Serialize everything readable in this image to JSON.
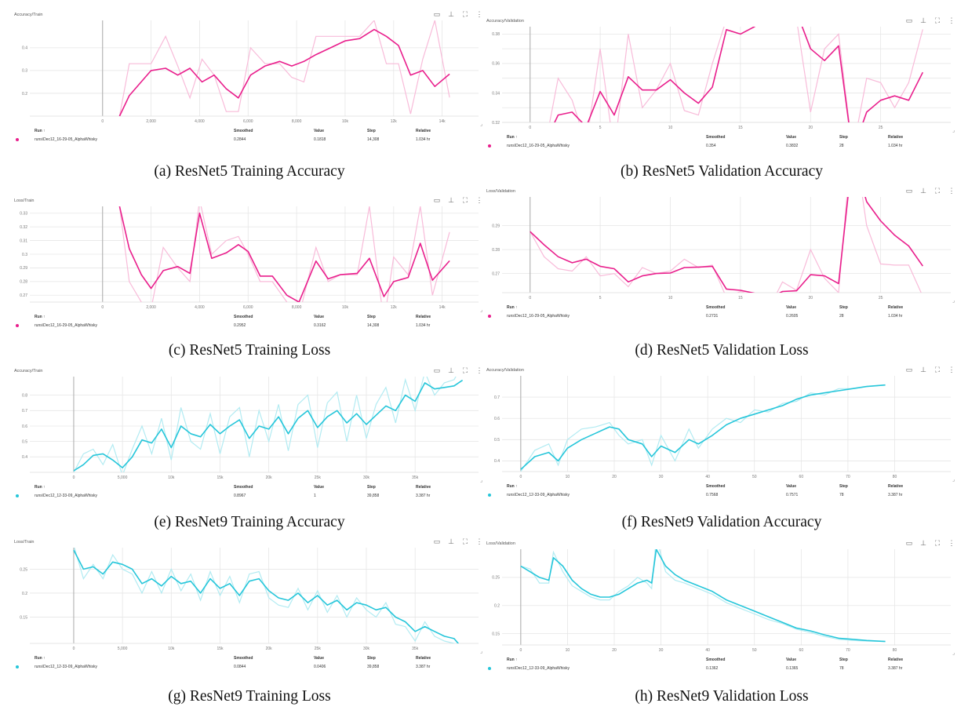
{
  "colors": {
    "pink": "#e91e8c",
    "pink_light": "#f8bbd9",
    "cyan": "#26c6da",
    "cyan_light": "#b2ebf2"
  },
  "table_headers": {
    "run": "Run ↑",
    "smoothed": "Smoothed",
    "value": "Value",
    "step": "Step",
    "relative": "Relative"
  },
  "icons": [
    "image-icon",
    "pin-icon",
    "fullscreen-icon",
    "more-vert-icon"
  ],
  "chart_data": [
    {
      "type": "line",
      "panel_title": "Accuracy/Train",
      "caption": "(a) ResNet5 Training Accuracy",
      "color": "pink",
      "xlim": [
        -3000,
        15500
      ],
      "ylim": [
        0.1,
        0.52
      ],
      "zero_x": 0,
      "xticks": [
        0,
        2000,
        4000,
        6000,
        8000,
        10000,
        12000,
        14000
      ],
      "xtick_labels": [
        "0",
        "2,000",
        "4,000",
        "6,000",
        "8,000",
        "10k",
        "12k",
        "14k"
      ],
      "yticks": [
        0.2,
        0.3,
        0.4
      ],
      "ytick_labels": [
        "0.2",
        "0.3",
        "0.4"
      ],
      "x": [
        700,
        1100,
        2000,
        2600,
        3100,
        3600,
        4100,
        4600,
        5100,
        5600,
        6100,
        6700,
        7300,
        7800,
        8300,
        8800,
        9400,
        10000,
        10600,
        11200,
        11700,
        12200,
        12700,
        13200,
        13700,
        14308
      ],
      "smoothed": [
        0.1,
        0.19,
        0.3,
        0.31,
        0.28,
        0.31,
        0.25,
        0.28,
        0.22,
        0.18,
        0.28,
        0.32,
        0.34,
        0.32,
        0.34,
        0.37,
        0.4,
        0.43,
        0.44,
        0.48,
        0.45,
        0.41,
        0.28,
        0.3,
        0.23,
        0.2844
      ],
      "raw": [
        0.1,
        0.33,
        0.33,
        0.45,
        0.32,
        0.18,
        0.35,
        0.28,
        0.12,
        0.12,
        0.4,
        0.33,
        0.33,
        0.27,
        0.25,
        0.45,
        0.45,
        0.45,
        0.45,
        0.52,
        0.33,
        0.33,
        0.11,
        0.35,
        0.52,
        0.1818
      ],
      "row": {
        "run": "runs\\Dec12_16-29-05_AlphaWhisky",
        "smoothed": "0.2844",
        "value": "0.1818",
        "step": "14,308",
        "relative": "1.034 hr"
      }
    },
    {
      "type": "line",
      "panel_title": "Accuracy/Validation",
      "caption": "(b) ResNet5 Validation Accuracy",
      "color": "pink",
      "xlim": [
        -2,
        30
      ],
      "ylim": [
        0.32,
        0.385
      ],
      "zero_x": 0,
      "xticks": [
        0,
        5,
        10,
        15,
        20,
        25
      ],
      "xtick_labels": [
        "0",
        "5",
        "10",
        "15",
        "20",
        "25"
      ],
      "yticks": [
        0.32,
        0.33,
        0.34,
        0.35,
        0.36,
        0.37,
        0.38
      ],
      "ytick_labels": [
        "0.32",
        "",
        "0.34",
        "",
        "0.36",
        "",
        "0.38"
      ],
      "x": [
        0,
        1,
        2,
        3,
        4,
        5,
        6,
        7,
        8,
        9,
        10,
        11,
        12,
        13,
        14,
        15,
        16,
        17,
        18,
        19,
        20,
        21,
        22,
        23,
        24,
        25,
        26,
        27,
        28
      ],
      "smoothed": [
        0.309,
        0.305,
        0.325,
        0.327,
        0.317,
        0.341,
        0.325,
        0.351,
        0.342,
        0.342,
        0.349,
        0.34,
        0.333,
        0.344,
        0.383,
        0.38,
        0.385,
        0.392,
        0.39,
        0.395,
        0.37,
        0.362,
        0.372,
        0.3,
        0.327,
        0.335,
        0.338,
        0.335,
        0.354
      ],
      "raw": [
        0.309,
        0.3,
        0.35,
        0.335,
        0.305,
        0.37,
        0.3,
        0.38,
        0.33,
        0.342,
        0.36,
        0.328,
        0.325,
        0.36,
        0.39,
        0.39,
        0.39,
        0.39,
        0.39,
        0.39,
        0.327,
        0.37,
        0.38,
        0.3,
        0.35,
        0.347,
        0.33,
        0.347,
        0.3832
      ],
      "row": {
        "run": "runs\\Dec12_16-29-05_AlphaWhisky",
        "smoothed": "0.354",
        "value": "0.3832",
        "step": "28",
        "relative": "1.034 hr"
      }
    },
    {
      "type": "line",
      "panel_title": "Loss/Train",
      "caption": "(c) ResNet5 Training Loss",
      "color": "pink",
      "xlim": [
        -3000,
        15500
      ],
      "ylim": [
        0.265,
        0.335
      ],
      "zero_x": 0,
      "xticks": [
        0,
        2000,
        4000,
        6000,
        8000,
        10000,
        12000,
        14000
      ],
      "xtick_labels": [
        "0",
        "2,000",
        "4,000",
        "6,000",
        "8,000",
        "10k",
        "12k",
        "14k"
      ],
      "yticks": [
        0.27,
        0.28,
        0.29,
        0.3,
        0.31,
        0.32,
        0.33
      ],
      "ytick_labels": [
        "0.27",
        "0.28",
        "0.29",
        "0.3",
        "0.31",
        "0.32",
        "0.33"
      ],
      "x": [
        700,
        1100,
        1600,
        2000,
        2500,
        3100,
        3600,
        4000,
        4500,
        5100,
        5600,
        6000,
        6500,
        7000,
        7600,
        8100,
        8800,
        9300,
        9800,
        10500,
        11000,
        11600,
        12000,
        12600,
        13100,
        13600,
        14308
      ],
      "smoothed": [
        0.335,
        0.304,
        0.285,
        0.275,
        0.288,
        0.291,
        0.286,
        0.33,
        0.297,
        0.301,
        0.307,
        0.302,
        0.284,
        0.284,
        0.27,
        0.265,
        0.295,
        0.282,
        0.285,
        0.286,
        0.297,
        0.269,
        0.28,
        0.283,
        0.308,
        0.281,
        0.2952
      ],
      "raw": [
        0.335,
        0.28,
        0.265,
        0.26,
        0.305,
        0.29,
        0.28,
        0.34,
        0.3,
        0.31,
        0.313,
        0.3,
        0.28,
        0.28,
        0.265,
        0.255,
        0.305,
        0.28,
        0.285,
        0.285,
        0.335,
        0.25,
        0.298,
        0.285,
        0.335,
        0.27,
        0.3162
      ],
      "row": {
        "run": "runs\\Dec12_16-29-05_AlphaWhisky",
        "smoothed": "0.2952",
        "value": "0.3162",
        "step": "14,308",
        "relative": "1.034 hr"
      }
    },
    {
      "type": "line",
      "panel_title": "Loss/Validation",
      "caption": "(d) ResNet5 Validation Loss",
      "color": "pink",
      "xlim": [
        -2,
        30
      ],
      "ylim": [
        0.262,
        0.302
      ],
      "zero_x": 0,
      "xticks": [
        0,
        5,
        10,
        15,
        20,
        25
      ],
      "xtick_labels": [
        "0",
        "5",
        "10",
        "15",
        "20",
        "25"
      ],
      "yticks": [
        0.27,
        0.28,
        0.29
      ],
      "ytick_labels": [
        "0.27",
        "0.28",
        "0.29"
      ],
      "x": [
        0,
        1,
        2,
        3,
        4,
        5,
        6,
        7,
        8,
        9,
        10,
        11,
        12,
        13,
        14,
        15,
        16,
        17,
        18,
        19,
        20,
        21,
        22,
        23,
        24,
        25,
        26,
        27,
        28
      ],
      "smoothed": [
        0.2875,
        0.282,
        0.277,
        0.2745,
        0.276,
        0.273,
        0.272,
        0.2665,
        0.269,
        0.27,
        0.2702,
        0.2725,
        0.2727,
        0.273,
        0.2635,
        0.263,
        0.2618,
        0.2595,
        0.2625,
        0.2628,
        0.2695,
        0.269,
        0.2658,
        0.32,
        0.3,
        0.292,
        0.286,
        0.2815,
        0.2731
      ],
      "raw": [
        0.2875,
        0.277,
        0.272,
        0.271,
        0.277,
        0.269,
        0.27,
        0.2645,
        0.2725,
        0.27,
        0.271,
        0.276,
        0.2725,
        0.2735,
        0.26,
        0.2625,
        0.261,
        0.255,
        0.2665,
        0.263,
        0.28,
        0.268,
        0.262,
        0.33,
        0.29,
        0.274,
        0.2735,
        0.2735,
        0.2605
      ],
      "row": {
        "run": "runs\\Dec12_16-29-05_AlphaWhisky",
        "smoothed": "0.2731",
        "value": "0.2605",
        "step": "28",
        "relative": "1.034 hr"
      }
    },
    {
      "type": "line",
      "panel_title": "Accuracy/Train",
      "caption": "(e) ResNet9 Training Accuracy",
      "color": "cyan",
      "xlim": [
        -4500,
        41500
      ],
      "ylim": [
        0.3,
        0.92
      ],
      "zero_x": 0,
      "xticks": [
        0,
        5000,
        10000,
        15000,
        20000,
        25000,
        30000,
        35000
      ],
      "xtick_labels": [
        "0",
        "5,000",
        "10k",
        "15k",
        "20k",
        "25k",
        "30k",
        "35k"
      ],
      "yticks": [
        0.4,
        0.5,
        0.6,
        0.7,
        0.8
      ],
      "ytick_labels": [
        "0.4",
        "0.5",
        "0.6",
        "0.7",
        "0.8"
      ],
      "x": [
        0,
        1000,
        2000,
        3000,
        4000,
        5000,
        6000,
        7000,
        8000,
        9000,
        10000,
        11000,
        12000,
        13000,
        14000,
        15000,
        16000,
        17000,
        18000,
        19000,
        20000,
        21000,
        22000,
        23000,
        24000,
        25000,
        26000,
        27000,
        28000,
        29000,
        30000,
        31000,
        32000,
        33000,
        34000,
        35000,
        36000,
        37000,
        38000,
        39000,
        39858
      ],
      "smoothed": [
        0.31,
        0.35,
        0.41,
        0.42,
        0.38,
        0.33,
        0.4,
        0.51,
        0.49,
        0.58,
        0.46,
        0.6,
        0.55,
        0.53,
        0.61,
        0.55,
        0.6,
        0.64,
        0.52,
        0.6,
        0.58,
        0.66,
        0.55,
        0.65,
        0.7,
        0.59,
        0.66,
        0.7,
        0.62,
        0.68,
        0.61,
        0.67,
        0.73,
        0.7,
        0.8,
        0.76,
        0.88,
        0.84,
        0.85,
        0.86,
        0.8967
      ],
      "raw": [
        0.3,
        0.42,
        0.45,
        0.35,
        0.48,
        0.28,
        0.45,
        0.6,
        0.42,
        0.65,
        0.38,
        0.72,
        0.5,
        0.45,
        0.68,
        0.42,
        0.66,
        0.72,
        0.4,
        0.7,
        0.5,
        0.74,
        0.44,
        0.74,
        0.8,
        0.46,
        0.75,
        0.82,
        0.5,
        0.8,
        0.52,
        0.74,
        0.85,
        0.62,
        0.9,
        0.7,
        0.95,
        0.8,
        0.88,
        0.9,
        1.0
      ],
      "row": {
        "run": "runs\\Dec12_12-33-09_AlphaWhisky",
        "smoothed": "0.8967",
        "value": "1",
        "step": "39,858",
        "relative": "3.387 hr"
      }
    },
    {
      "type": "line",
      "panel_title": "Accuracy/Validation",
      "caption": "(f) ResNet9 Validation Accuracy",
      "color": "cyan",
      "xlim": [
        -4,
        92
      ],
      "ylim": [
        0.35,
        0.8
      ],
      "zero_x": 0,
      "xticks": [
        0,
        10,
        20,
        30,
        40,
        50,
        60,
        70,
        80
      ],
      "xtick_labels": [
        "0",
        "10",
        "20",
        "30",
        "40",
        "50",
        "60",
        "70",
        "80"
      ],
      "yticks": [
        0.4,
        0.5,
        0.6,
        0.7
      ],
      "ytick_labels": [
        "0.4",
        "0.5",
        "0.6",
        "0.7"
      ],
      "x": [
        0,
        3,
        6,
        8,
        10,
        13,
        16,
        19,
        21,
        23,
        26,
        28,
        30,
        33,
        36,
        38,
        41,
        44,
        47,
        50,
        53,
        56,
        59,
        62,
        65,
        68,
        71,
        74,
        78
      ],
      "smoothed": [
        0.36,
        0.42,
        0.44,
        0.4,
        0.46,
        0.5,
        0.53,
        0.56,
        0.55,
        0.5,
        0.48,
        0.42,
        0.47,
        0.44,
        0.5,
        0.48,
        0.52,
        0.57,
        0.6,
        0.62,
        0.64,
        0.66,
        0.69,
        0.71,
        0.72,
        0.73,
        0.74,
        0.75,
        0.7568
      ],
      "raw": [
        0.35,
        0.45,
        0.48,
        0.38,
        0.5,
        0.55,
        0.56,
        0.58,
        0.52,
        0.48,
        0.5,
        0.38,
        0.52,
        0.4,
        0.55,
        0.46,
        0.55,
        0.6,
        0.58,
        0.64,
        0.63,
        0.67,
        0.68,
        0.72,
        0.71,
        0.74,
        0.74,
        0.75,
        0.7571
      ],
      "row": {
        "run": "runs\\Dec12_12-33-09_AlphaWhisky",
        "smoothed": "0.7568",
        "value": "0.7571",
        "step": "78",
        "relative": "3.387 hr"
      }
    },
    {
      "type": "line",
      "panel_title": "Loss/Train",
      "caption": "(g) ResNet9 Training Loss",
      "color": "cyan",
      "xlim": [
        -4500,
        41500
      ],
      "ylim": [
        0.095,
        0.295
      ],
      "zero_x": 0,
      "xticks": [
        0,
        5000,
        10000,
        15000,
        20000,
        25000,
        30000,
        35000
      ],
      "xtick_labels": [
        "0",
        "5,000",
        "10k",
        "15k",
        "20k",
        "25k",
        "30k",
        "35k"
      ],
      "yticks": [
        0.15,
        0.2,
        0.25
      ],
      "ytick_labels": [
        "0.15",
        "0.2",
        "0.25"
      ],
      "x": [
        0,
        1000,
        2000,
        3000,
        4000,
        5000,
        6000,
        7000,
        8000,
        9000,
        10000,
        11000,
        12000,
        13000,
        14000,
        15000,
        16000,
        17000,
        18000,
        19000,
        20000,
        21000,
        22000,
        23000,
        24000,
        25000,
        26000,
        27000,
        28000,
        29000,
        30000,
        31000,
        32000,
        33000,
        34000,
        35000,
        36000,
        37000,
        38000,
        39000,
        39858
      ],
      "smoothed": [
        0.29,
        0.25,
        0.255,
        0.24,
        0.265,
        0.26,
        0.25,
        0.22,
        0.23,
        0.215,
        0.235,
        0.22,
        0.225,
        0.2,
        0.23,
        0.21,
        0.22,
        0.195,
        0.225,
        0.23,
        0.205,
        0.19,
        0.185,
        0.2,
        0.18,
        0.195,
        0.175,
        0.185,
        0.165,
        0.18,
        0.175,
        0.165,
        0.17,
        0.15,
        0.14,
        0.12,
        0.13,
        0.12,
        0.11,
        0.105,
        0.0844
      ],
      "raw": [
        0.3,
        0.23,
        0.26,
        0.23,
        0.28,
        0.25,
        0.24,
        0.2,
        0.245,
        0.2,
        0.25,
        0.205,
        0.24,
        0.185,
        0.245,
        0.195,
        0.235,
        0.18,
        0.24,
        0.245,
        0.19,
        0.175,
        0.17,
        0.21,
        0.165,
        0.205,
        0.16,
        0.195,
        0.15,
        0.19,
        0.165,
        0.15,
        0.18,
        0.135,
        0.13,
        0.1,
        0.14,
        0.11,
        0.1,
        0.095,
        0.0406
      ],
      "row": {
        "run": "runs\\Dec12_12-33-09_AlphaWhisky",
        "smoothed": "0.0844",
        "value": "0.0406",
        "step": "39,858",
        "relative": "3.387 hr"
      }
    },
    {
      "type": "line",
      "panel_title": "Loss/Validation",
      "caption": "(h) ResNet9 Validation Loss",
      "color": "cyan",
      "xlim": [
        -4,
        92
      ],
      "ylim": [
        0.13,
        0.3
      ],
      "zero_x": 0,
      "xticks": [
        0,
        10,
        20,
        30,
        40,
        50,
        60,
        70,
        80
      ],
      "xtick_labels": [
        "0",
        "10",
        "20",
        "30",
        "40",
        "50",
        "60",
        "70",
        "80"
      ],
      "yticks": [
        0.15,
        0.2,
        0.25
      ],
      "ytick_labels": [
        "0.15",
        "0.2",
        "0.25"
      ],
      "x": [
        0,
        2,
        4,
        6,
        7,
        9,
        11,
        13,
        15,
        17,
        19,
        21,
        23,
        25,
        27,
        28,
        29,
        31,
        33,
        35,
        38,
        41,
        44,
        47,
        50,
        53,
        56,
        59,
        62,
        65,
        68,
        71,
        74,
        78
      ],
      "smoothed": [
        0.27,
        0.26,
        0.25,
        0.245,
        0.285,
        0.27,
        0.245,
        0.23,
        0.22,
        0.215,
        0.215,
        0.22,
        0.23,
        0.24,
        0.245,
        0.24,
        0.3,
        0.27,
        0.255,
        0.245,
        0.235,
        0.225,
        0.21,
        0.2,
        0.19,
        0.18,
        0.17,
        0.16,
        0.155,
        0.148,
        0.142,
        0.14,
        0.138,
        0.1362
      ],
      "raw": [
        0.27,
        0.265,
        0.24,
        0.24,
        0.295,
        0.26,
        0.235,
        0.225,
        0.215,
        0.21,
        0.21,
        0.225,
        0.235,
        0.25,
        0.24,
        0.23,
        0.32,
        0.26,
        0.245,
        0.24,
        0.23,
        0.22,
        0.205,
        0.195,
        0.185,
        0.175,
        0.168,
        0.158,
        0.152,
        0.145,
        0.14,
        0.138,
        0.137,
        0.1365
      ],
      "row": {
        "run": "runs\\Dec12_12-33-09_AlphaWhisky",
        "smoothed": "0.1362",
        "value": "0.1365",
        "step": "78",
        "relative": "3.387 hr"
      }
    }
  ]
}
